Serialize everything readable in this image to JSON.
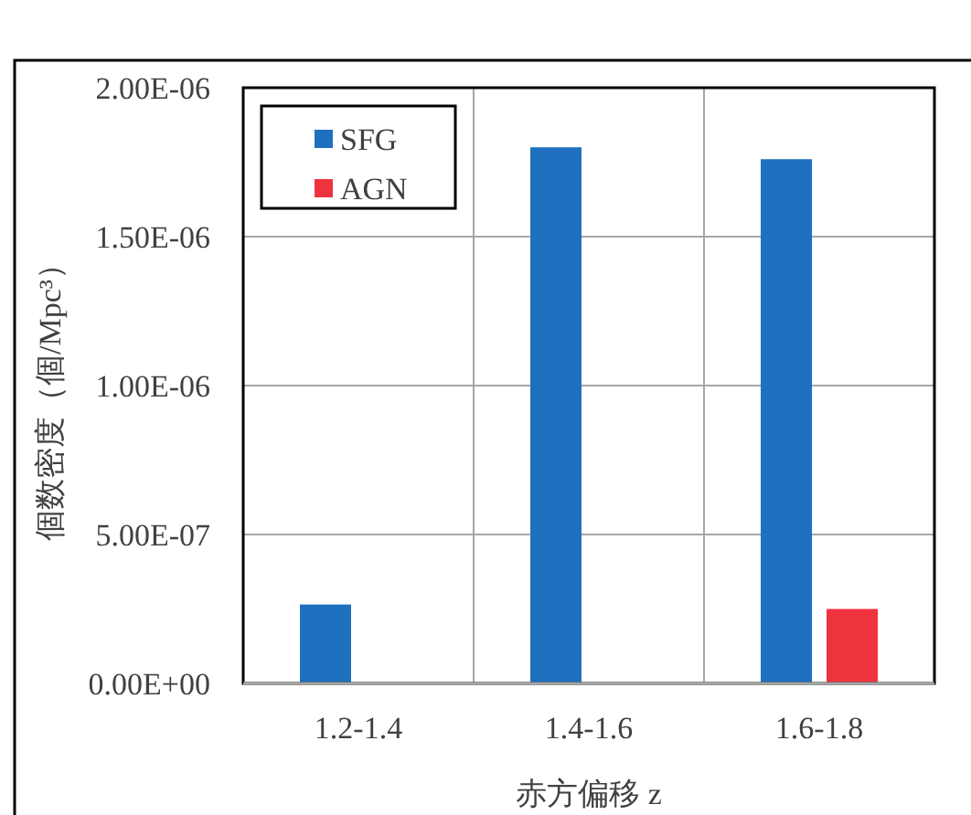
{
  "chart_data": {
    "type": "bar",
    "xlabel": "赤方偏移  z",
    "ylabel": "個数密度（個/Mpc³）",
    "categories": [
      "1.2-1.4",
      "1.4-1.6",
      "1.6-1.8"
    ],
    "series": [
      {
        "name": "SFG",
        "color": "#1f70bf",
        "values": [
          2.65e-07,
          1.8e-06,
          1.76e-06
        ]
      },
      {
        "name": "AGN",
        "color": "#ee333f",
        "values": [
          null,
          null,
          2.5e-07
        ]
      }
    ],
    "ylim": [
      0,
      2e-06
    ],
    "yticks": [
      {
        "value": 0,
        "label": "0.00E+00"
      },
      {
        "value": 5e-07,
        "label": "5.00E-07"
      },
      {
        "value": 1e-06,
        "label": "1.00E-06"
      },
      {
        "value": 1.5e-06,
        "label": "1.50E-06"
      },
      {
        "value": 2e-06,
        "label": "2.00E-06"
      }
    ],
    "grid": true,
    "legend": "top left"
  }
}
